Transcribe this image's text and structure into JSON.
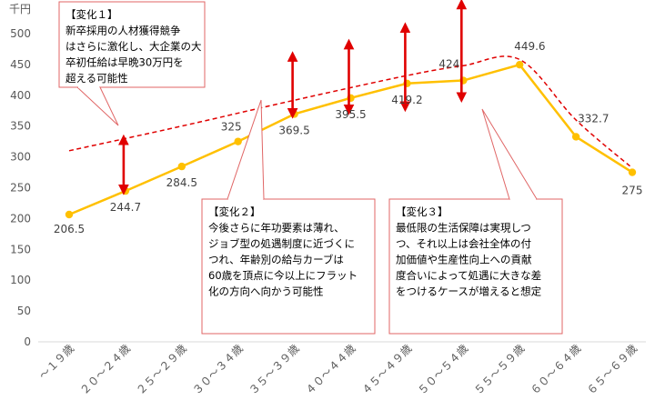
{
  "chart_data": {
    "type": "line",
    "ylabel": "千円",
    "ylim": [
      0,
      500
    ],
    "yticks": [
      0,
      50,
      100,
      150,
      200,
      250,
      300,
      350,
      400,
      450,
      500
    ],
    "grid": false,
    "categories": [
      "～１９歳",
      "２０～２４歳",
      "２５～２９歳",
      "３０～３４歳",
      "３５～３９歳",
      "４０～４４歳",
      "４５～４９歳",
      "５０～５４歳",
      "５５～５９歳",
      "６０～６４歳",
      "６５～６９歳"
    ],
    "series": [
      {
        "values": [
          206.5,
          244.7,
          284.5,
          325,
          369.5,
          395.5,
          419.2,
          424,
          449.6,
          332.7,
          275
        ],
        "labels": [
          "206.5",
          "244.7",
          "284.5",
          "325",
          "369.5",
          "395.5",
          "419.2",
          "424",
          "449.6",
          "332.7",
          "275"
        ],
        "color": "#FFC000"
      }
    ],
    "dashed_curve": {
      "color": "#E00000",
      "points": [
        [
          0,
          310
        ],
        [
          2,
          350
        ],
        [
          4,
          392
        ],
        [
          6,
          432
        ],
        [
          7,
          448
        ],
        [
          8,
          458
        ],
        [
          9,
          360
        ],
        [
          10,
          282
        ]
      ]
    },
    "arrows": [
      {
        "category": 1,
        "from": 245,
        "to": 328
      },
      {
        "category": 4,
        "from": 369,
        "to": 463
      },
      {
        "category": 5,
        "from": 375,
        "to": 483
      },
      {
        "category": 6,
        "from": 380,
        "to": 510
      },
      {
        "category": 7,
        "from": 395,
        "to": 548
      }
    ],
    "arrow_color": "#E00000",
    "callouts": [
      {
        "lines": [
          "【変化１】",
          "新卒採用の人材獲得競争",
          "はさらに激化し、大企業の大",
          "卒初任給は早晩30万円を",
          "超える可能性"
        ]
      },
      {
        "lines": [
          "【変化２】",
          "今後さらに年功要素は薄れ、",
          "ジョブ型の処遇制度に近づくに",
          "つれ、年齢別の給与カーブは",
          "60歳を頂点に今以上にフラット",
          "化の方向へ向かう可能性"
        ]
      },
      {
        "lines": [
          "【変化３】",
          "最低限の生活保障は実現しつ",
          "つ、それ以上は会社全体の付",
          "加価値や生産性向上への貢献",
          "度合いによって処遇に大きな差",
          "をつけるケースが増えると想定"
        ]
      }
    ],
    "callout_border_color": "#E06666"
  }
}
